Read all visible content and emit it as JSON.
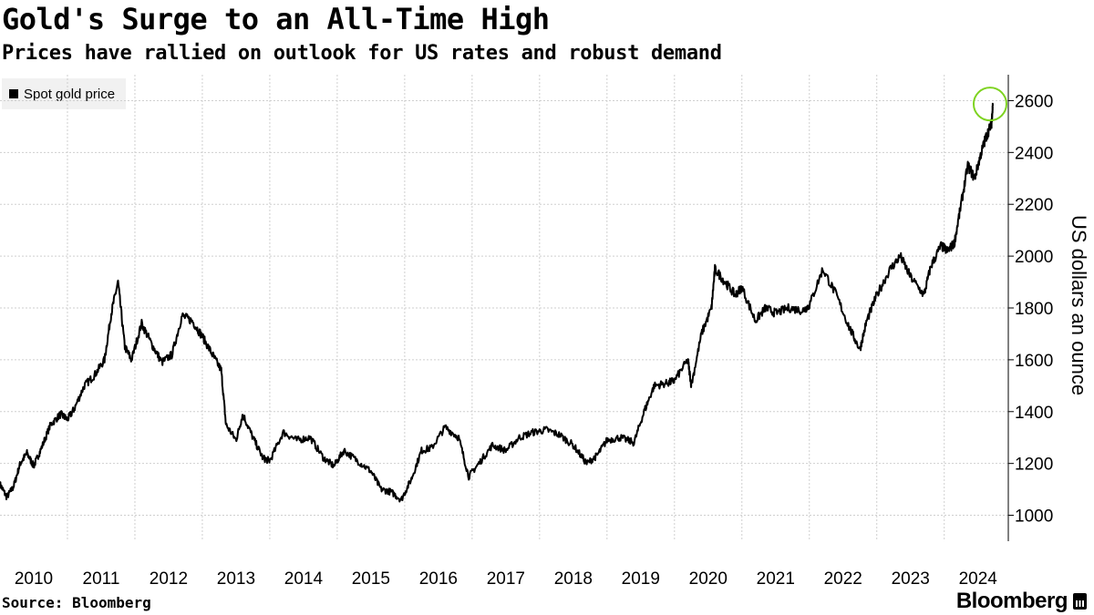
{
  "chart_data": {
    "type": "line",
    "title": "Gold's Surge to an All-Time High",
    "subtitle": "Prices have rallied on outlook for US rates and robust demand",
    "ylabel": "US dollars an ounce",
    "ylim": [
      900,
      2700
    ],
    "xlim": [
      2010.0,
      2024.95
    ],
    "x_ticks": [
      "2010",
      "2011",
      "2012",
      "2013",
      "2014",
      "2015",
      "2016",
      "2017",
      "2018",
      "2019",
      "2020",
      "2021",
      "2022",
      "2023",
      "2024"
    ],
    "y_ticks": [
      1000,
      1200,
      1400,
      1600,
      1800,
      2000,
      2200,
      2400,
      2600
    ],
    "grid": true,
    "legend_position": "top-left",
    "line_color": "#000000",
    "highlight_color": "#7ed321",
    "series": [
      {
        "name": "Spot gold price",
        "x": [
          2010.0,
          2010.1,
          2010.2,
          2010.3,
          2010.4,
          2010.5,
          2010.6,
          2010.75,
          2010.9,
          2011.0,
          2011.1,
          2011.25,
          2011.4,
          2011.55,
          2011.65,
          2011.75,
          2011.85,
          2011.95,
          2012.1,
          2012.25,
          2012.4,
          2012.55,
          2012.7,
          2012.85,
          2013.0,
          2013.15,
          2013.28,
          2013.35,
          2013.5,
          2013.6,
          2013.75,
          2013.9,
          2014.0,
          2014.2,
          2014.4,
          2014.6,
          2014.8,
          2014.95,
          2015.1,
          2015.3,
          2015.5,
          2015.65,
          2015.8,
          2015.95,
          2016.1,
          2016.25,
          2016.4,
          2016.6,
          2016.8,
          2016.95,
          2017.1,
          2017.3,
          2017.5,
          2017.7,
          2017.9,
          2018.1,
          2018.3,
          2018.5,
          2018.7,
          2018.85,
          2019.0,
          2019.2,
          2019.4,
          2019.55,
          2019.7,
          2019.9,
          2020.0,
          2020.2,
          2020.25,
          2020.4,
          2020.55,
          2020.6,
          2020.75,
          2020.9,
          2021.0,
          2021.2,
          2021.35,
          2021.5,
          2021.7,
          2021.9,
          2022.0,
          2022.2,
          2022.4,
          2022.6,
          2022.75,
          2022.85,
          2023.0,
          2023.2,
          2023.35,
          2023.5,
          2023.7,
          2023.8,
          2023.95,
          2024.05,
          2024.15,
          2024.25,
          2024.35,
          2024.45,
          2024.55,
          2024.62,
          2024.7,
          2024.72
        ],
        "values": [
          1120,
          1070,
          1110,
          1200,
          1240,
          1190,
          1250,
          1350,
          1390,
          1370,
          1410,
          1500,
          1540,
          1600,
          1780,
          1900,
          1650,
          1600,
          1740,
          1660,
          1590,
          1620,
          1770,
          1750,
          1690,
          1620,
          1560,
          1350,
          1290,
          1390,
          1300,
          1220,
          1210,
          1320,
          1290,
          1300,
          1220,
          1190,
          1250,
          1210,
          1170,
          1100,
          1090,
          1060,
          1140,
          1250,
          1260,
          1340,
          1300,
          1150,
          1200,
          1270,
          1250,
          1300,
          1320,
          1330,
          1310,
          1270,
          1200,
          1230,
          1290,
          1300,
          1280,
          1400,
          1500,
          1510,
          1520,
          1600,
          1500,
          1700,
          1800,
          1950,
          1900,
          1850,
          1880,
          1750,
          1800,
          1780,
          1800,
          1790,
          1810,
          1950,
          1850,
          1720,
          1640,
          1750,
          1850,
          1950,
          2000,
          1920,
          1850,
          1960,
          2040,
          2020,
          2050,
          2200,
          2350,
          2300,
          2400,
          2460,
          2510,
          2580
        ]
      }
    ]
  },
  "legend_label": "Spot gold price",
  "source": "Source: Bloomberg",
  "brand": "Bloomberg"
}
